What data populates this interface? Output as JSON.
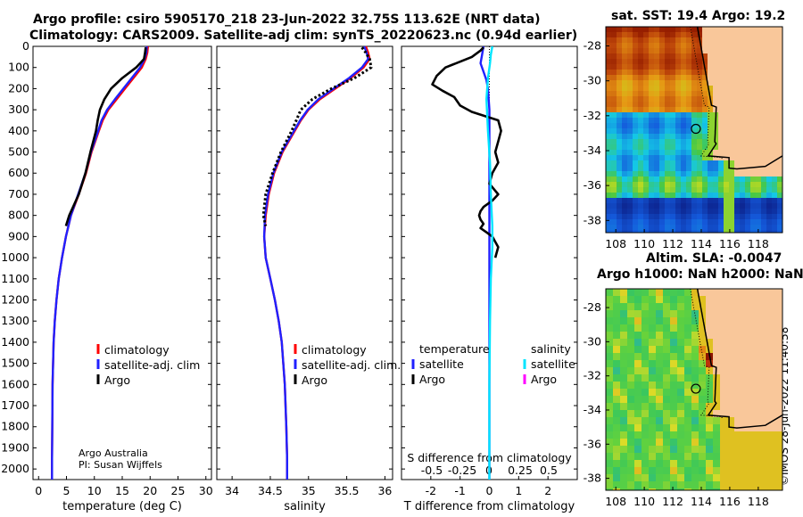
{
  "header": {
    "title_line1": "Argo profile: csiro 5905170_218 23-Jun-2022 32.75S 113.62E (NRT data)",
    "title_line2": "Climatology: CARS2009. Satellite-adj clim: synTS_20220623.nc (0.94d earlier)",
    "map1_title": "sat. SST: 19.4 Argo: 19.2",
    "map2_title_line1": "Altim. SLA: -0.0047",
    "map2_title_line2": "Argo h1000: NaN h2000: NaN",
    "stamp": "©IMOS 28-Jun-2022 11:40:58"
  },
  "colors": {
    "climatology": "#ff0000",
    "satellite_adj": "#2020ff",
    "argo": "#000000",
    "sal_satellite": "#00e5ff",
    "sal_argo": "#ff00ff",
    "land": "#f9c79a"
  },
  "chart_data": [
    {
      "type": "line",
      "id": "temperature",
      "xlabel": "temperature (deg C)",
      "ylabel": "",
      "xlim": [
        -1,
        31
      ],
      "ylim": [
        2050,
        0
      ],
      "xticks": [
        0,
        5,
        10,
        15,
        20,
        25,
        30
      ],
      "yticks": [
        0,
        100,
        200,
        300,
        400,
        500,
        600,
        700,
        800,
        900,
        1000,
        1100,
        1200,
        1300,
        1400,
        1500,
        1600,
        1700,
        1800,
        1900,
        2000
      ],
      "legend": [
        "climatology",
        "satellite-adj. clim",
        "Argo"
      ],
      "annotation": [
        "Argo Australia",
        "PI: Susan Wijffels"
      ],
      "series": [
        {
          "name": "climatology",
          "color": "#ff0000",
          "x": [
            19.6,
            19.5,
            19.2,
            18.5,
            17.0,
            15.5,
            14.0,
            12.5,
            11.5,
            10.8,
            9.5,
            8.5,
            7.2,
            5.8,
            4.9,
            4.2,
            3.6,
            3.2,
            2.9,
            2.7,
            2.6,
            2.5,
            2.45,
            2.4,
            2.4
          ],
          "y": [
            0,
            30,
            60,
            100,
            150,
            200,
            250,
            300,
            350,
            400,
            500,
            600,
            700,
            800,
            900,
            1000,
            1100,
            1200,
            1300,
            1400,
            1500,
            1600,
            1800,
            1950,
            2050
          ]
        },
        {
          "name": "satellite-adj. clim",
          "color": "#2020ff",
          "x": [
            19.4,
            19.3,
            19.0,
            18.2,
            16.7,
            15.2,
            13.7,
            12.3,
            11.3,
            10.7,
            9.4,
            8.4,
            7.1,
            5.8,
            4.9,
            4.2,
            3.6,
            3.2,
            2.9,
            2.7,
            2.6,
            2.5,
            2.45,
            2.4,
            2.4
          ],
          "y": [
            0,
            30,
            60,
            100,
            150,
            200,
            250,
            300,
            350,
            400,
            500,
            600,
            700,
            800,
            900,
            1000,
            1100,
            1200,
            1300,
            1400,
            1500,
            1600,
            1800,
            1950,
            2050
          ]
        },
        {
          "name": "Argo",
          "color": "#000000",
          "x": [
            19.2,
            19.1,
            18.9,
            17.5,
            15.0,
            13.0,
            11.8,
            11.0,
            10.6,
            10.3,
            9.3,
            8.4,
            7.2,
            5.5,
            4.9
          ],
          "y": [
            5,
            30,
            60,
            100,
            150,
            200,
            250,
            300,
            350,
            400,
            500,
            600,
            700,
            800,
            850
          ]
        }
      ]
    },
    {
      "type": "line",
      "id": "salinity",
      "xlabel": "salinity",
      "ylabel": "",
      "xlim": [
        33.8,
        36.1
      ],
      "ylim": [
        2050,
        0
      ],
      "xticks": [
        34,
        34.5,
        35,
        35.5,
        36
      ],
      "xtick_labels": [
        "34",
        "34.5",
        "35",
        "35.5",
        "36"
      ],
      "legend": [
        "climatology",
        "satellite-adj. clim.",
        "Argo"
      ],
      "series": [
        {
          "name": "climatology",
          "color": "#ff0000",
          "x": [
            35.75,
            35.78,
            35.8,
            35.72,
            35.55,
            35.35,
            35.15,
            35.0,
            34.9,
            34.82,
            34.66,
            34.55,
            34.48,
            34.44,
            34.42,
            34.44,
            34.5,
            34.56,
            34.61,
            34.65,
            34.67,
            34.69,
            34.71,
            34.72,
            34.72
          ],
          "y": [
            0,
            30,
            60,
            100,
            150,
            200,
            250,
            300,
            350,
            400,
            500,
            600,
            700,
            800,
            900,
            1000,
            1100,
            1200,
            1300,
            1400,
            1500,
            1600,
            1800,
            1950,
            2050
          ]
        },
        {
          "name": "satellite-adj. clim.",
          "color": "#2020ff",
          "x": [
            35.73,
            35.76,
            35.78,
            35.7,
            35.53,
            35.33,
            35.13,
            34.99,
            34.89,
            34.81,
            34.65,
            34.54,
            34.47,
            34.43,
            34.42,
            34.44,
            34.5,
            34.56,
            34.61,
            34.65,
            34.67,
            34.69,
            34.71,
            34.72,
            34.72
          ],
          "y": [
            0,
            30,
            60,
            100,
            150,
            200,
            250,
            300,
            350,
            400,
            500,
            600,
            700,
            800,
            900,
            1000,
            1100,
            1200,
            1300,
            1400,
            1500,
            1600,
            1800,
            1950,
            2050
          ]
        },
        {
          "name": "Argo",
          "color": "#000000",
          "x": [
            35.7,
            35.75,
            35.8,
            35.82,
            35.6,
            35.3,
            35.05,
            34.9,
            34.84,
            34.78,
            34.64,
            34.53,
            34.44,
            34.41,
            34.44
          ],
          "y": [
            5,
            30,
            60,
            100,
            150,
            200,
            250,
            300,
            350,
            400,
            500,
            600,
            700,
            800,
            850
          ]
        }
      ]
    },
    {
      "type": "line",
      "id": "difference",
      "xlabel": "T difference from climatology",
      "top_label": "S difference from climatology",
      "xlim": [
        -3,
        3
      ],
      "ylim": [
        2050,
        0
      ],
      "xticks": [
        -2,
        -1,
        0,
        1,
        2
      ],
      "top_ticks": [
        -0.5,
        -0.25,
        0,
        0.25,
        0.5
      ],
      "top_tick_labels": [
        "-0.5",
        "-0.25",
        "0",
        "0.25",
        "0.5"
      ],
      "legend_temperature": {
        "title": "temperature",
        "items": [
          "satellite",
          "Argo"
        ]
      },
      "legend_salinity": {
        "title": "salinity",
        "items": [
          "satellite",
          "Argo"
        ]
      },
      "series": [
        {
          "name": "temperature satellite",
          "color": "#2020ff",
          "x": [
            -0.2,
            -0.25,
            -0.3,
            -0.2,
            -0.1,
            -0.05,
            0,
            0,
            0,
            0,
            0,
            0,
            0,
            0
          ],
          "y": [
            0,
            40,
            80,
            120,
            160,
            200,
            300,
            400,
            600,
            800,
            1000,
            1400,
            1800,
            2050
          ]
        },
        {
          "name": "temperature Argo",
          "color": "#000000",
          "x": [
            -0.2,
            -0.3,
            -0.6,
            -1.5,
            -1.8,
            -1.95,
            -1.6,
            -1.2,
            -1.0,
            -0.6,
            0.3,
            0.4,
            0.3,
            0.2,
            0.3,
            0.1,
            0,
            0.3,
            0.1,
            -0.2,
            -0.3,
            -0.35,
            -0.3,
            -0.2,
            -0.3,
            -0.1,
            0.1,
            0.3,
            0.2
          ],
          "y": [
            5,
            20,
            50,
            100,
            140,
            180,
            210,
            240,
            280,
            310,
            350,
            400,
            450,
            500,
            550,
            600,
            650,
            700,
            730,
            760,
            780,
            800,
            820,
            840,
            860,
            880,
            900,
            950,
            1000
          ]
        },
        {
          "name": "salinity satellite",
          "color": "#00e5ff",
          "x": [
            0.1,
            0.05,
            0.02,
            -0.05,
            -0.1,
            -0.05,
            0.02,
            0.05,
            0.1,
            0.1,
            0.05,
            0.02,
            0,
            0,
            0
          ],
          "y": [
            0,
            40,
            80,
            150,
            250,
            400,
            550,
            700,
            850,
            950,
            1100,
            1300,
            1600,
            1900,
            2050
          ]
        }
      ]
    }
  ],
  "maps": [
    {
      "id": "sst",
      "title": "sat. SST: 19.4 Argo: 19.2",
      "xticks": [
        108,
        110,
        112,
        114,
        116,
        118
      ],
      "yticks": [
        -28,
        -30,
        -32,
        -34,
        -36,
        -38
      ],
      "marker": {
        "lon": 113.62,
        "lat": -32.75
      }
    },
    {
      "id": "sla",
      "title": "Altim. SLA: -0.0047",
      "xticks": [
        108,
        110,
        112,
        114,
        116,
        118
      ],
      "yticks": [
        -28,
        -30,
        -32,
        -34,
        -36,
        -38
      ],
      "marker": {
        "lon": 113.62,
        "lat": -32.75
      }
    }
  ]
}
